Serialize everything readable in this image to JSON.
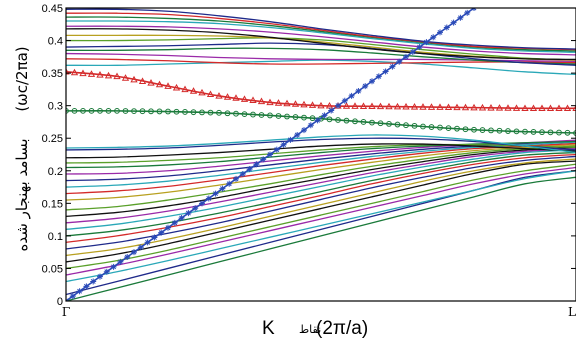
{
  "chart_data": {
    "type": "line",
    "title": "",
    "ylabel": "(ωc/2πa) بسامد بهنجار شده",
    "ylabel_units": "(ωc/2πa)",
    "ylabel_text": "بسامد بهنجار شده",
    "xlabel_symbol": "K",
    "xlabel_word": "نقاط",
    "xlabel_units": "(2π/a)",
    "x_tick_labels": [
      "Γ",
      "L"
    ],
    "xlim": [
      0,
      1
    ],
    "ylim": [
      0,
      0.45
    ],
    "y_ticks": [
      0,
      0.05,
      0.1,
      0.15,
      0.2,
      0.25,
      0.3,
      0.35,
      0.4,
      0.45
    ],
    "y_tick_labels": [
      "0",
      "0.05",
      "0.1",
      "0.15",
      "0.2",
      "0.25",
      "0.3",
      "0.35",
      "0.4",
      "0.45"
    ],
    "grid": false,
    "legend": "none",
    "x": [
      0,
      0.1,
      0.2,
      0.3,
      0.4,
      0.5,
      0.6,
      0.7,
      0.8,
      0.9,
      1.0
    ],
    "series": [
      {
        "color": "#1a7a3a",
        "values": [
          0.0,
          0.02,
          0.04,
          0.06,
          0.08,
          0.1,
          0.12,
          0.14,
          0.16,
          0.18,
          0.19
        ]
      },
      {
        "color": "#1f2a8a",
        "values": [
          0.01,
          0.03,
          0.05,
          0.07,
          0.09,
          0.11,
          0.13,
          0.15,
          0.17,
          0.19,
          0.2
        ]
      },
      {
        "color": "#2aa8b8",
        "values": [
          0.03,
          0.045,
          0.062,
          0.08,
          0.098,
          0.116,
          0.134,
          0.152,
          0.17,
          0.188,
          0.2
        ]
      },
      {
        "color": "#9a2aa8",
        "values": [
          0.04,
          0.055,
          0.072,
          0.09,
          0.108,
          0.126,
          0.144,
          0.162,
          0.18,
          0.195,
          0.205
        ]
      },
      {
        "color": "#5aa02a",
        "values": [
          0.05,
          0.062,
          0.078,
          0.096,
          0.114,
          0.132,
          0.15,
          0.168,
          0.186,
          0.2,
          0.21
        ]
      },
      {
        "color": "#111111",
        "values": [
          0.06,
          0.072,
          0.088,
          0.106,
          0.124,
          0.142,
          0.16,
          0.178,
          0.196,
          0.21,
          0.215
        ]
      },
      {
        "color": "#b8a020",
        "values": [
          0.07,
          0.08,
          0.095,
          0.112,
          0.13,
          0.148,
          0.166,
          0.184,
          0.2,
          0.212,
          0.218
        ]
      },
      {
        "color": "#1f2a8a",
        "values": [
          0.08,
          0.09,
          0.104,
          0.12,
          0.138,
          0.156,
          0.174,
          0.19,
          0.205,
          0.216,
          0.222
        ]
      },
      {
        "color": "#d42a2a",
        "values": [
          0.09,
          0.1,
          0.113,
          0.128,
          0.145,
          0.162,
          0.18,
          0.196,
          0.21,
          0.22,
          0.225
        ]
      },
      {
        "color": "#1a7a3a",
        "values": [
          0.1,
          0.108,
          0.12,
          0.135,
          0.151,
          0.168,
          0.185,
          0.2,
          0.214,
          0.224,
          0.228
        ]
      },
      {
        "color": "#2aa8b8",
        "values": [
          0.11,
          0.118,
          0.13,
          0.144,
          0.16,
          0.176,
          0.192,
          0.206,
          0.218,
          0.228,
          0.232
        ]
      },
      {
        "color": "#9a2aa8",
        "values": [
          0.12,
          0.127,
          0.138,
          0.152,
          0.167,
          0.182,
          0.197,
          0.21,
          0.222,
          0.23,
          0.234
        ]
      },
      {
        "color": "#111111",
        "values": [
          0.13,
          0.136,
          0.146,
          0.159,
          0.174,
          0.188,
          0.202,
          0.214,
          0.225,
          0.232,
          0.236
        ]
      },
      {
        "color": "#5aa02a",
        "values": [
          0.14,
          0.145,
          0.155,
          0.167,
          0.18,
          0.194,
          0.207,
          0.218,
          0.228,
          0.234,
          0.238
        ]
      },
      {
        "color": "#b8a020",
        "values": [
          0.155,
          0.159,
          0.167,
          0.178,
          0.19,
          0.202,
          0.213,
          0.223,
          0.231,
          0.236,
          0.24
        ]
      },
      {
        "color": "#d42a2a",
        "values": [
          0.165,
          0.169,
          0.176,
          0.186,
          0.197,
          0.208,
          0.218,
          0.227,
          0.234,
          0.238,
          0.242
        ]
      },
      {
        "color": "#2aa8b8",
        "values": [
          0.175,
          0.178,
          0.184,
          0.193,
          0.203,
          0.213,
          0.222,
          0.23,
          0.236,
          0.24,
          0.244
        ]
      },
      {
        "color": "#1f2a8a",
        "values": [
          0.185,
          0.187,
          0.192,
          0.2,
          0.209,
          0.218,
          0.226,
          0.233,
          0.238,
          0.242,
          0.246
        ]
      },
      {
        "color": "#9a2aa8",
        "values": [
          0.195,
          0.196,
          0.2,
          0.207,
          0.215,
          0.223,
          0.23,
          0.236,
          0.24,
          0.243,
          0.247
        ]
      },
      {
        "color": "#1a7a3a",
        "values": [
          0.205,
          0.206,
          0.209,
          0.214,
          0.221,
          0.228,
          0.234,
          0.238,
          0.241,
          0.243,
          0.245
        ]
      },
      {
        "color": "#5aa02a",
        "values": [
          0.212,
          0.213,
          0.216,
          0.22,
          0.226,
          0.232,
          0.237,
          0.24,
          0.24,
          0.238,
          0.236
        ]
      },
      {
        "color": "#111111",
        "values": [
          0.22,
          0.221,
          0.224,
          0.228,
          0.233,
          0.238,
          0.241,
          0.241,
          0.238,
          0.234,
          0.23
        ]
      },
      {
        "color": "#1f2a8a",
        "values": [
          0.232,
          0.233,
          0.235,
          0.239,
          0.244,
          0.248,
          0.25,
          0.249,
          0.245,
          0.238,
          0.232
        ]
      },
      {
        "color": "#2aa8b8",
        "values": [
          0.235,
          0.236,
          0.238,
          0.242,
          0.247,
          0.252,
          0.255,
          0.253,
          0.247,
          0.238,
          0.228
        ]
      },
      {
        "color": "#1a7a3a",
        "marker": "circle",
        "values": [
          0.292,
          0.292,
          0.291,
          0.289,
          0.285,
          0.28,
          0.274,
          0.268,
          0.263,
          0.26,
          0.258
        ]
      },
      {
        "color": "#d42a2a",
        "marker": "triangle",
        "values": [
          0.352,
          0.345,
          0.33,
          0.315,
          0.305,
          0.3,
          0.299,
          0.298,
          0.297,
          0.296,
          0.296
        ]
      },
      {
        "color": "#2aa8b8",
        "values": [
          0.362,
          0.362,
          0.364,
          0.366,
          0.368,
          0.37,
          0.368,
          0.364,
          0.358,
          0.352,
          0.348
        ]
      },
      {
        "color": "#d42a2a",
        "values": [
          0.372,
          0.371,
          0.369,
          0.366,
          0.364,
          0.364,
          0.365,
          0.366,
          0.367,
          0.367,
          0.366
        ]
      },
      {
        "color": "#9a2aa8",
        "values": [
          0.38,
          0.379,
          0.377,
          0.374,
          0.372,
          0.371,
          0.371,
          0.371,
          0.37,
          0.369,
          0.368
        ]
      },
      {
        "color": "#1a7a3a",
        "values": [
          0.385,
          0.385,
          0.386,
          0.388,
          0.388,
          0.386,
          0.381,
          0.375,
          0.37,
          0.366,
          0.364
        ]
      },
      {
        "color": "#1f2a8a",
        "values": [
          0.39,
          0.391,
          0.392,
          0.394,
          0.396,
          0.394,
          0.388,
          0.38,
          0.372,
          0.366,
          0.362
        ]
      },
      {
        "color": "#5aa02a",
        "values": [
          0.4,
          0.4,
          0.401,
          0.403,
          0.404,
          0.401,
          0.394,
          0.386,
          0.379,
          0.373,
          0.37
        ]
      },
      {
        "color": "#b8a020",
        "values": [
          0.408,
          0.408,
          0.408,
          0.407,
          0.404,
          0.398,
          0.39,
          0.382,
          0.376,
          0.372,
          0.37
        ]
      },
      {
        "color": "#111111",
        "values": [
          0.418,
          0.418,
          0.416,
          0.412,
          0.405,
          0.396,
          0.387,
          0.38,
          0.375,
          0.372,
          0.371
        ]
      },
      {
        "color": "#9a2aa8",
        "values": [
          0.422,
          0.422,
          0.421,
          0.418,
          0.413,
          0.406,
          0.398,
          0.39,
          0.384,
          0.38,
          0.378
        ]
      },
      {
        "color": "#2aa8b8",
        "values": [
          0.43,
          0.43,
          0.429,
          0.426,
          0.42,
          0.412,
          0.403,
          0.395,
          0.388,
          0.384,
          0.382
        ]
      },
      {
        "color": "#1a7a3a",
        "values": [
          0.436,
          0.436,
          0.434,
          0.43,
          0.423,
          0.414,
          0.405,
          0.397,
          0.39,
          0.386,
          0.384
        ]
      },
      {
        "color": "#d42a2a",
        "values": [
          0.442,
          0.442,
          0.44,
          0.434,
          0.426,
          0.416,
          0.406,
          0.398,
          0.391,
          0.388,
          0.386
        ]
      },
      {
        "color": "#1f2a8a",
        "values": [
          0.448,
          0.448,
          0.445,
          0.438,
          0.429,
          0.418,
          0.408,
          0.399,
          0.393,
          0.389,
          0.387
        ]
      }
    ],
    "light_line": {
      "color": "#2a4ab8",
      "marker": "star",
      "x": [
        0,
        0.8
      ],
      "values": [
        0,
        0.45
      ]
    }
  }
}
